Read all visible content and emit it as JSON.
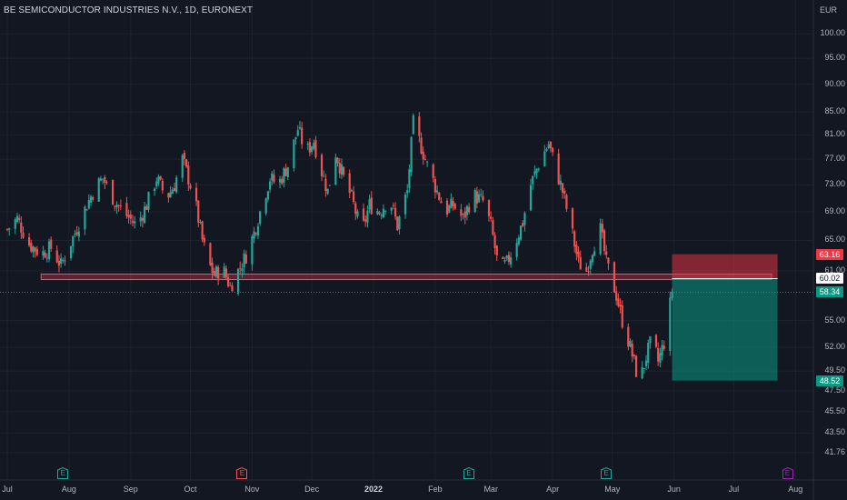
{
  "header": {
    "symbol_title": "BE SEMICONDUCTOR INDUSTRIES N.V., 1D, EURONEXT",
    "currency": "EUR"
  },
  "chart_data": {
    "type": "candlestick",
    "title": "BE SEMICONDUCTOR INDUSTRIES N.V., 1D, EURONEXT",
    "ylabel": "EUR",
    "y_scale": "log",
    "x_range": [
      "2021-07-01",
      "2022-08-10"
    ],
    "y_range": [
      40.5,
      104.5
    ],
    "grid": true,
    "y_ticks": [
      "100.00",
      "95.00",
      "90.00",
      "85.00",
      "81.00",
      "77.00",
      "73.00",
      "69.00",
      "65.00",
      "61.00",
      "55.00",
      "52.00",
      "49.50",
      "47.50",
      "45.50",
      "43.50",
      "41.76"
    ],
    "x_ticks": [
      {
        "label": "Jul",
        "date": "2021-07-01"
      },
      {
        "label": "Aug",
        "date": "2021-08-01"
      },
      {
        "label": "Sep",
        "date": "2021-09-01"
      },
      {
        "label": "Oct",
        "date": "2021-10-01"
      },
      {
        "label": "Nov",
        "date": "2021-11-01"
      },
      {
        "label": "Dec",
        "date": "2021-12-01"
      },
      {
        "label": "2022",
        "date": "2022-01-01",
        "bold": true
      },
      {
        "label": "Feb",
        "date": "2022-02-01"
      },
      {
        "label": "Mar",
        "date": "2022-03-01"
      },
      {
        "label": "Apr",
        "date": "2022-04-01"
      },
      {
        "label": "May",
        "date": "2022-05-01"
      },
      {
        "label": "Jun",
        "date": "2022-06-01"
      },
      {
        "label": "Jul",
        "date": "2022-07-01"
      },
      {
        "label": "Aug",
        "date": "2022-08-01"
      }
    ],
    "close_path": [
      [
        "2021-07-01",
        66.5
      ],
      [
        "2021-07-06",
        68.0
      ],
      [
        "2021-07-12",
        64.5
      ],
      [
        "2021-07-18",
        63.2
      ],
      [
        "2021-07-23",
        64.0
      ],
      [
        "2021-07-28",
        61.7
      ],
      [
        "2021-08-04",
        66.0
      ],
      [
        "2021-08-10",
        70.0
      ],
      [
        "2021-08-14",
        72.5
      ],
      [
        "2021-08-18",
        74.0
      ],
      [
        "2021-08-24",
        70.5
      ],
      [
        "2021-08-30",
        68.5
      ],
      [
        "2021-09-04",
        67.0
      ],
      [
        "2021-09-09",
        70.0
      ],
      [
        "2021-09-14",
        74.0
      ],
      [
        "2021-09-19",
        71.0
      ],
      [
        "2021-09-23",
        73.0
      ],
      [
        "2021-09-27",
        77.0
      ],
      [
        "2021-09-30",
        74.0
      ],
      [
        "2021-10-03",
        71.0
      ],
      [
        "2021-10-07",
        65.0
      ],
      [
        "2021-10-10",
        62.0
      ],
      [
        "2021-10-13",
        60.5
      ],
      [
        "2021-10-17",
        61.5
      ],
      [
        "2021-10-21",
        59.0
      ],
      [
        "2021-10-25",
        61.0
      ],
      [
        "2021-10-29",
        63.0
      ],
      [
        "2021-11-02",
        66.0
      ],
      [
        "2021-11-06",
        70.0
      ],
      [
        "2021-11-10",
        74.0
      ],
      [
        "2021-11-14",
        73.0
      ],
      [
        "2021-11-19",
        76.0
      ],
      [
        "2021-11-24",
        82.0
      ],
      [
        "2021-11-28",
        78.0
      ],
      [
        "2021-12-02",
        80.0
      ],
      [
        "2021-12-05",
        76.0
      ],
      [
        "2021-12-09",
        72.0
      ],
      [
        "2021-12-13",
        78.0
      ],
      [
        "2021-12-17",
        74.0
      ],
      [
        "2021-12-21",
        71.0
      ],
      [
        "2021-12-26",
        66.0
      ],
      [
        "2021-12-30",
        70.0
      ],
      [
        "2022-01-04",
        69.0
      ],
      [
        "2022-01-09",
        71.0
      ],
      [
        "2022-01-13",
        67.0
      ],
      [
        "2022-01-18",
        72.0
      ],
      [
        "2022-01-21",
        83.0
      ],
      [
        "2022-01-24",
        80.0
      ],
      [
        "2022-01-28",
        76.0
      ],
      [
        "2022-02-02",
        72.0
      ],
      [
        "2022-02-06",
        69.0
      ],
      [
        "2022-02-10",
        70.0
      ],
      [
        "2022-02-15",
        68.0
      ],
      [
        "2022-02-20",
        71.5
      ],
      [
        "2022-02-25",
        70.5
      ],
      [
        "2022-03-01",
        67.0
      ],
      [
        "2022-03-05",
        61.0
      ],
      [
        "2022-03-09",
        62.0
      ],
      [
        "2022-03-13",
        64.5
      ],
      [
        "2022-03-17",
        67.5
      ],
      [
        "2022-03-21",
        73.0
      ],
      [
        "2022-03-26",
        77.0
      ],
      [
        "2022-03-30",
        79.5
      ],
      [
        "2022-04-03",
        75.0
      ],
      [
        "2022-04-06",
        72.0
      ],
      [
        "2022-04-10",
        67.0
      ],
      [
        "2022-04-14",
        62.0
      ],
      [
        "2022-04-18",
        61.0
      ],
      [
        "2022-04-21",
        64.0
      ],
      [
        "2022-04-25",
        66.5
      ],
      [
        "2022-04-28",
        62.0
      ],
      [
        "2022-05-03",
        58.0
      ],
      [
        "2022-05-06",
        55.0
      ],
      [
        "2022-05-10",
        52.0
      ],
      [
        "2022-05-13",
        49.5
      ],
      [
        "2022-05-15",
        48.5
      ],
      [
        "2022-05-18",
        51.0
      ],
      [
        "2022-05-21",
        53.0
      ],
      [
        "2022-05-24",
        50.5
      ],
      [
        "2022-05-27",
        52.5
      ],
      [
        "2022-05-31",
        58.34
      ]
    ],
    "horizontal_zone": {
      "price_low": 59.9,
      "price_high": 60.6,
      "start": "2021-07-18",
      "end": "2022-07-20"
    },
    "position_tool": {
      "entry": 60.02,
      "stop": 63.16,
      "target": 48.52,
      "start": "2022-05-31",
      "end": "2022-07-23"
    },
    "last_price": 58.34,
    "price_labels": [
      {
        "value": "63.16",
        "color": "#f23645",
        "text_color": "#ffffff"
      },
      {
        "value": "60.02",
        "color": "#ffffff",
        "text_color": "#131722"
      },
      {
        "value": "58.34",
        "color": "#089981",
        "text_color": "#ffffff"
      },
      {
        "value": "48.52",
        "color": "#089981",
        "text_color": "#ffffff"
      }
    ],
    "earnings_markers": [
      {
        "label": "E",
        "date": "2021-07-29",
        "color": "#26a69a"
      },
      {
        "label": "E",
        "date": "2021-10-27",
        "color": "#ef5350"
      },
      {
        "label": "E",
        "date": "2022-02-18",
        "color": "#26a69a"
      },
      {
        "label": "E",
        "date": "2022-04-28",
        "color": "#26a69a"
      },
      {
        "label": "E",
        "date": "2022-07-28",
        "color": "#9c27b0"
      }
    ],
    "colors": {
      "up": "#26a69a",
      "down": "#ef5350",
      "background": "#131722",
      "grid": "#1e222d"
    }
  }
}
